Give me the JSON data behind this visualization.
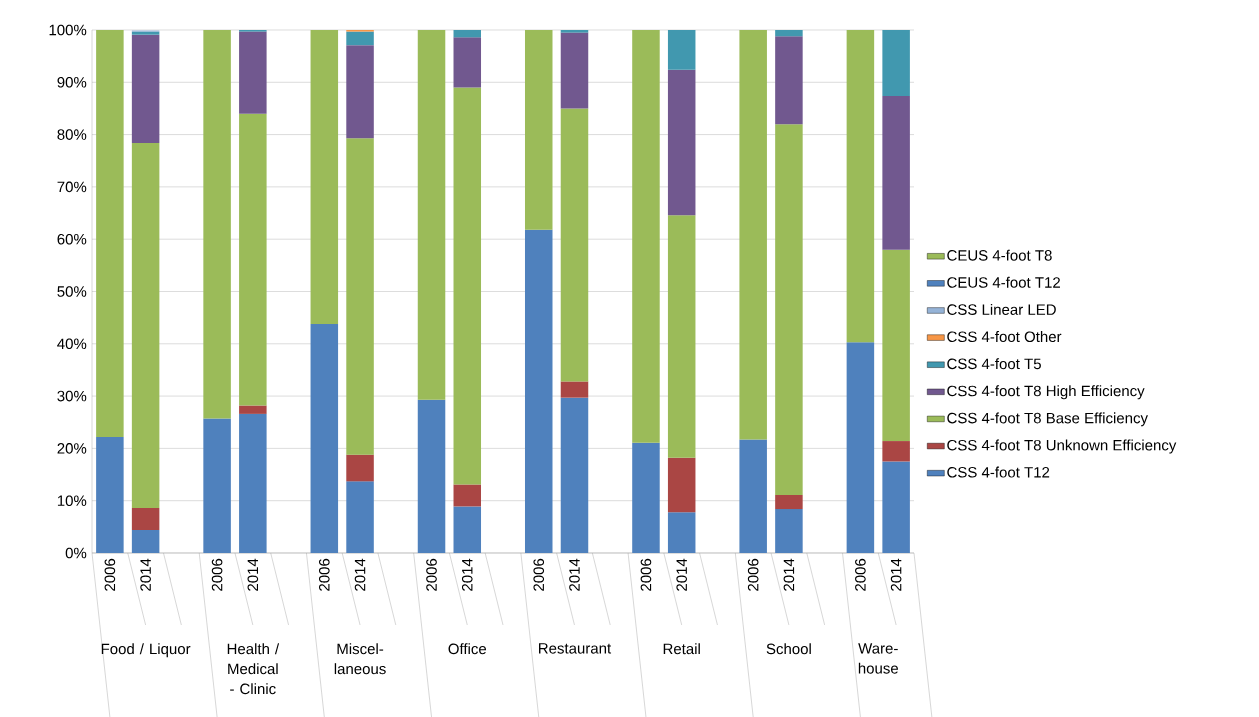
{
  "chart_data": {
    "type": "bar",
    "stacked": true,
    "categories": [
      "2006",
      "2014",
      null,
      "2006",
      "2014",
      null,
      "2006",
      "2014",
      null,
      "2006",
      "2014",
      null,
      "2006",
      "2014",
      null,
      "2006",
      "2014",
      null,
      "2006",
      "2014",
      null,
      "2006",
      "2014"
    ],
    "annotations": [
      "Food / Liquor",
      "Health / Medical - Clinic",
      "Miscel- laneous",
      "Office",
      "Restaurant",
      "Retail",
      "School",
      "Ware- house"
    ],
    "series": [
      {
        "name": "CSS 4-foot T12",
        "color": "#4f81bd",
        "values": [
          null,
          4.4,
          null,
          null,
          26.6,
          null,
          null,
          13.7,
          null,
          null,
          8.9,
          null,
          null,
          29.7,
          null,
          null,
          7.8,
          null,
          null,
          8.4,
          null,
          null,
          17.5
        ]
      },
      {
        "name": "CSS 4-foot T8 Unknown Efficiency",
        "color": "#aa4644",
        "values": [
          null,
          4.2,
          null,
          null,
          1.6,
          null,
          null,
          5.1,
          null,
          null,
          4.2,
          null,
          null,
          3.1,
          null,
          null,
          10.4,
          null,
          null,
          2.7,
          null,
          null,
          3.9
        ]
      },
      {
        "name": "CSS 4-foot T8 Base Efficiency",
        "color": "#9bbb59",
        "values": [
          null,
          69.8,
          null,
          null,
          55.8,
          null,
          null,
          60.5,
          null,
          null,
          75.9,
          null,
          null,
          52.2,
          null,
          null,
          46.4,
          null,
          null,
          70.9,
          null,
          null,
          36.6
        ]
      },
      {
        "name": "CSS 4-foot T8 High Efficiency",
        "color": "#71588f",
        "values": [
          null,
          20.7,
          null,
          null,
          15.7,
          null,
          null,
          17.8,
          null,
          null,
          9.6,
          null,
          null,
          14.5,
          null,
          null,
          27.8,
          null,
          null,
          16.8,
          null,
          null,
          29.4
        ]
      },
      {
        "name": "CSS 4-foot T5",
        "color": "#4198af",
        "values": [
          null,
          0.6,
          null,
          null,
          0.3,
          null,
          null,
          2.6,
          null,
          null,
          1.4,
          null,
          null,
          0.5,
          null,
          null,
          7.6,
          null,
          null,
          1.2,
          null,
          null,
          12.6
        ]
      },
      {
        "name": "CSS 4-foot Other",
        "color": "#f79646",
        "values": [
          null,
          null,
          null,
          null,
          null,
          null,
          null,
          0.3,
          null,
          null,
          null,
          null,
          null,
          null,
          null,
          null,
          null,
          null,
          null,
          null,
          null,
          null,
          null
        ]
      },
      {
        "name": "CSS Linear LED",
        "color": "#95b3d7",
        "values": [
          null,
          0.2,
          null,
          null,
          null,
          null,
          null,
          null,
          null,
          null,
          null,
          null,
          null,
          null,
          null,
          null,
          null,
          null,
          null,
          null,
          null,
          null,
          null
        ]
      },
      {
        "name": "CEUS 4-foot T12",
        "color": "#4f81bd",
        "values": [
          22.2,
          null,
          null,
          25.7,
          null,
          null,
          43.8,
          null,
          null,
          29.3,
          null,
          null,
          61.8,
          null,
          null,
          21.1,
          null,
          null,
          21.7,
          null,
          null,
          40.3,
          null
        ]
      },
      {
        "name": "CEUS 4-foot T8",
        "color": "#9bbb59",
        "values": [
          77.8,
          null,
          null,
          74.3,
          null,
          null,
          56.2,
          null,
          null,
          70.7,
          null,
          null,
          38.2,
          null,
          null,
          78.9,
          null,
          null,
          78.3,
          null,
          null,
          59.7,
          null
        ]
      }
    ],
    "ylim": [
      0,
      100
    ],
    "yticks": [
      {
        "value": 0,
        "label": "0%"
      },
      {
        "value": 10,
        "label": "10%"
      },
      {
        "value": 20,
        "label": "20%"
      },
      {
        "value": 30,
        "label": "30%"
      },
      {
        "value": 40,
        "label": "40%"
      },
      {
        "value": 50,
        "label": "50%"
      },
      {
        "value": 60,
        "label": "60%"
      },
      {
        "value": 70,
        "label": "70%"
      },
      {
        "value": 80,
        "label": "80%"
      },
      {
        "value": 90,
        "label": "90%"
      },
      {
        "value": 100,
        "label": "100%"
      }
    ],
    "grid": "y",
    "legend": "right"
  }
}
